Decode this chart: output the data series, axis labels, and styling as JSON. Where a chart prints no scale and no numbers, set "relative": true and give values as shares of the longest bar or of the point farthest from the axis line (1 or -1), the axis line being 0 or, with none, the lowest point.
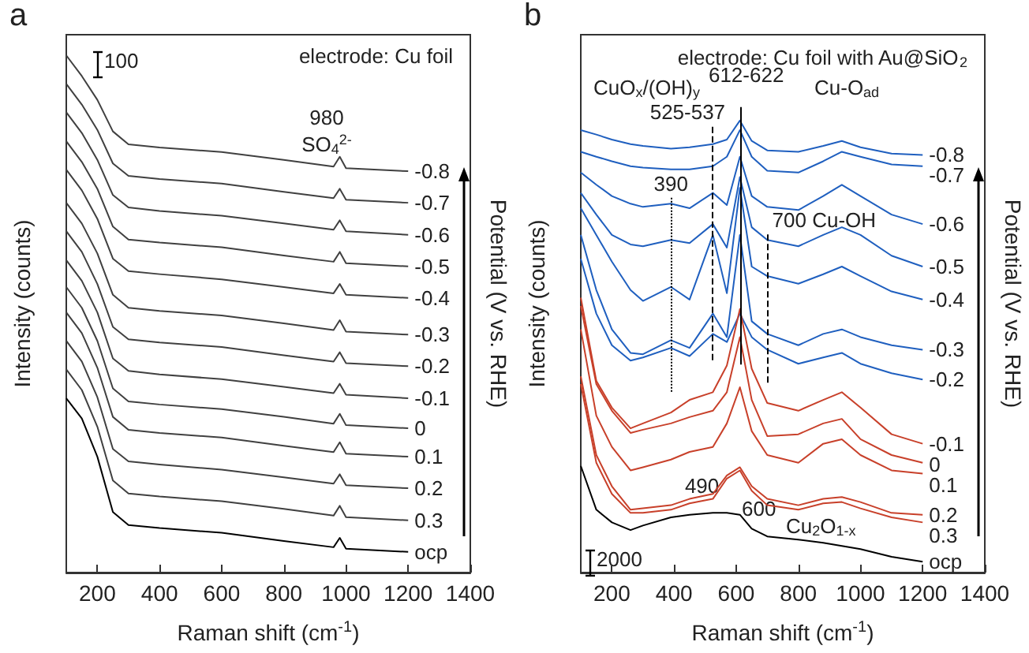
{
  "chart_data": [
    {
      "type": "line",
      "relative": true,
      "title": "electrode: Cu foil",
      "xlabel": "Raman shift (cm$^{-1}$)",
      "ylabel": "Intensity (counts)",
      "y2label": "Potential (V vs. RHE)",
      "xlim": [
        100,
        1400
      ],
      "xticks": [
        200,
        400,
        600,
        800,
        1000,
        1200,
        1400
      ],
      "x": [
        100,
        150,
        200,
        250,
        300,
        400,
        600,
        800,
        960,
        980,
        1000,
        1200
      ],
      "annotations": [
        "a",
        "100",
        "980",
        "SO$_{4}$$^{2-}$"
      ],
      "series": [
        {
          "name": "-0.8",
          "color": "#404040",
          "values": [
            1.0,
            0.96,
            0.914,
            0.853,
            0.828,
            0.822,
            0.813,
            0.798,
            0.785,
            0.804,
            0.782,
            0.776
          ]
        },
        {
          "name": "-0.7",
          "color": "#404040",
          "values": [
            0.945,
            0.905,
            0.856,
            0.791,
            0.767,
            0.761,
            0.752,
            0.736,
            0.724,
            0.742,
            0.721,
            0.715
          ]
        },
        {
          "name": "-0.6",
          "color": "#404040",
          "values": [
            0.89,
            0.85,
            0.798,
            0.73,
            0.706,
            0.699,
            0.69,
            0.675,
            0.663,
            0.681,
            0.66,
            0.653
          ]
        },
        {
          "name": "-0.5",
          "color": "#404040",
          "values": [
            0.834,
            0.794,
            0.742,
            0.669,
            0.644,
            0.638,
            0.629,
            0.613,
            0.601,
            0.62,
            0.598,
            0.592
          ]
        },
        {
          "name": "-0.4",
          "color": "#404040",
          "values": [
            0.779,
            0.739,
            0.684,
            0.607,
            0.583,
            0.577,
            0.567,
            0.552,
            0.54,
            0.558,
            0.537,
            0.531
          ]
        },
        {
          "name": "-0.3",
          "color": "#404040",
          "values": [
            0.715,
            0.675,
            0.617,
            0.537,
            0.512,
            0.506,
            0.497,
            0.482,
            0.469,
            0.488,
            0.466,
            0.46
          ]
        },
        {
          "name": "-0.2",
          "color": "#404040",
          "values": [
            0.66,
            0.62,
            0.558,
            0.475,
            0.451,
            0.445,
            0.436,
            0.42,
            0.408,
            0.426,
            0.405,
            0.399
          ]
        },
        {
          "name": "-0.1",
          "color": "#404040",
          "values": [
            0.604,
            0.564,
            0.503,
            0.414,
            0.39,
            0.383,
            0.374,
            0.359,
            0.347,
            0.365,
            0.344,
            0.337
          ]
        },
        {
          "name": "0",
          "color": "#404040",
          "values": [
            0.552,
            0.512,
            0.448,
            0.356,
            0.331,
            0.325,
            0.316,
            0.301,
            0.288,
            0.307,
            0.285,
            0.279
          ]
        },
        {
          "name": "0.1",
          "color": "#404040",
          "values": [
            0.503,
            0.463,
            0.396,
            0.301,
            0.276,
            0.27,
            0.261,
            0.245,
            0.233,
            0.252,
            0.23,
            0.224
          ]
        },
        {
          "name": "0.2",
          "color": "#404040",
          "values": [
            0.448,
            0.408,
            0.339,
            0.239,
            0.215,
            0.209,
            0.199,
            0.184,
            0.172,
            0.19,
            0.169,
            0.163
          ]
        },
        {
          "name": "0.3",
          "color": "#404040",
          "values": [
            0.393,
            0.353,
            0.282,
            0.178,
            0.153,
            0.147,
            0.138,
            0.123,
            0.11,
            0.129,
            0.107,
            0.101
          ]
        },
        {
          "name": "ocp",
          "color": "#000000",
          "values": [
            0.337,
            0.298,
            0.224,
            0.117,
            0.092,
            0.086,
            0.077,
            0.061,
            0.049,
            0.067,
            0.046,
            0.04
          ]
        }
      ]
    },
    {
      "type": "line",
      "relative": true,
      "title": "electrode: Cu foil with Au@SiO$_{2}$",
      "xlabel": "Raman shift (cm$^{-1}$)",
      "ylabel": "Intensity (counts)",
      "y2label": "Potential (V vs. RHE)",
      "xlim": [
        100,
        1400
      ],
      "xticks": [
        200,
        400,
        600,
        800,
        1000,
        1200,
        1400
      ],
      "x": [
        100,
        150,
        200,
        260,
        300,
        390,
        450,
        525,
        570,
        612,
        650,
        700,
        800,
        880,
        940,
        1000,
        1100,
        1200
      ],
      "annotations": [
        "b",
        "2000",
        "CuO$_{x}$/(OH)$_{y}$",
        "Cu-O$_{ad}$",
        "Cu$_{2}$O$_{1-x}$",
        {
          "text": "490",
          "x": 490,
          "y": 0.17
        },
        "600"
      ],
      "ref_lines": [
        {
          "axis": "x",
          "value": 390,
          "label": "390",
          "line_style": "dotted",
          "color": "#000000"
        },
        {
          "axis": "x",
          "value": 525,
          "label": "525-537",
          "line_style": "dashed",
          "color": "#000000"
        },
        {
          "axis": "x",
          "value": 612,
          "label": "612-622",
          "line_style": "solid",
          "color": "#000000"
        },
        {
          "axis": "x",
          "value": 700,
          "label": "700 Cu-OH",
          "line_style": "dashed",
          "color": "#000000"
        }
      ],
      "series": [
        {
          "name": "-0.8",
          "color": "#1f5fbf",
          "values": [
            0.979,
            0.969,
            0.958,
            0.948,
            0.944,
            0.938,
            0.941,
            0.948,
            0.958,
            1.0,
            0.955,
            0.934,
            0.931,
            0.944,
            0.955,
            0.941,
            0.927,
            0.924
          ]
        },
        {
          "name": "-0.7",
          "color": "#1f5fbf",
          "values": [
            0.931,
            0.92,
            0.91,
            0.899,
            0.896,
            0.892,
            0.892,
            0.899,
            0.92,
            0.979,
            0.92,
            0.889,
            0.885,
            0.91,
            0.931,
            0.92,
            0.903,
            0.899
          ]
        },
        {
          "name": "-0.6",
          "color": "#1f5fbf",
          "values": [
            0.885,
            0.858,
            0.833,
            0.816,
            0.809,
            0.816,
            0.806,
            0.84,
            0.813,
            0.92,
            0.833,
            0.809,
            0.802,
            0.833,
            0.858,
            0.833,
            0.792,
            0.771
          ]
        },
        {
          "name": "-0.5",
          "color": "#1f5fbf",
          "values": [
            0.84,
            0.792,
            0.747,
            0.726,
            0.722,
            0.736,
            0.729,
            0.771,
            0.719,
            0.875,
            0.764,
            0.736,
            0.722,
            0.747,
            0.764,
            0.747,
            0.701,
            0.677
          ]
        },
        {
          "name": "-0.4",
          "color": "#1f5fbf",
          "values": [
            0.806,
            0.747,
            0.688,
            0.625,
            0.601,
            0.632,
            0.604,
            0.747,
            0.618,
            0.851,
            0.677,
            0.656,
            0.639,
            0.66,
            0.677,
            0.656,
            0.622,
            0.604
          ]
        },
        {
          "name": "-0.3",
          "color": "#1f5fbf",
          "values": [
            0.747,
            0.625,
            0.538,
            0.486,
            0.483,
            0.514,
            0.497,
            0.573,
            0.521,
            0.747,
            0.556,
            0.528,
            0.503,
            0.528,
            0.538,
            0.521,
            0.503,
            0.493
          ]
        },
        {
          "name": "-0.2",
          "color": "#1f5fbf",
          "values": [
            0.694,
            0.573,
            0.503,
            0.469,
            0.476,
            0.497,
            0.479,
            0.528,
            0.51,
            0.573,
            0.521,
            0.493,
            0.462,
            0.476,
            0.486,
            0.462,
            0.441,
            0.427
          ]
        },
        {
          "name": "-0.1",
          "color": "#c8402a",
          "values": [
            0.608,
            0.424,
            0.365,
            0.319,
            0.33,
            0.354,
            0.382,
            0.399,
            0.458,
            0.583,
            0.451,
            0.375,
            0.358,
            0.382,
            0.399,
            0.365,
            0.306,
            0.285
          ]
        },
        {
          "name": "0",
          "color": "#c8402a",
          "values": [
            0.59,
            0.417,
            0.358,
            0.309,
            0.316,
            0.33,
            0.344,
            0.358,
            0.399,
            0.521,
            0.382,
            0.302,
            0.306,
            0.33,
            0.34,
            0.295,
            0.26,
            0.243
          ]
        },
        {
          "name": "0.1",
          "color": "#c8402a",
          "values": [
            0.538,
            0.347,
            0.278,
            0.226,
            0.233,
            0.25,
            0.267,
            0.278,
            0.33,
            0.41,
            0.313,
            0.26,
            0.243,
            0.285,
            0.295,
            0.26,
            0.226,
            0.219
          ]
        },
        {
          "name": "0.2",
          "color": "#c8402a",
          "values": [
            0.434,
            0.26,
            0.191,
            0.139,
            0.142,
            0.149,
            0.163,
            0.174,
            0.215,
            0.233,
            0.191,
            0.163,
            0.149,
            0.163,
            0.167,
            0.156,
            0.132,
            0.128
          ]
        },
        {
          "name": "0.3",
          "color": "#c8402a",
          "values": [
            0.417,
            0.243,
            0.174,
            0.132,
            0.132,
            0.139,
            0.153,
            0.163,
            0.208,
            0.226,
            0.181,
            0.149,
            0.139,
            0.153,
            0.156,
            0.142,
            0.122,
            0.111
          ]
        },
        {
          "name": "ocp",
          "color": "#000000",
          "values": [
            0.236,
            0.139,
            0.111,
            0.094,
            0.104,
            0.122,
            0.128,
            0.132,
            0.132,
            0.128,
            0.097,
            0.08,
            0.073,
            0.066,
            0.059,
            0.052,
            0.035,
            0.024
          ]
        }
      ]
    }
  ]
}
